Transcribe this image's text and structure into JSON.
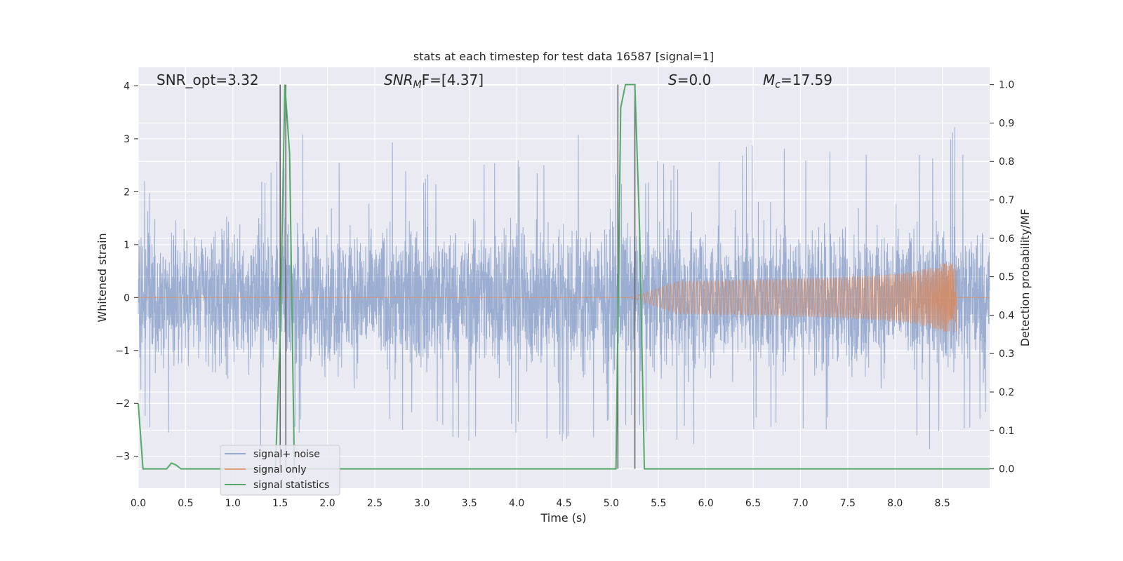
{
  "chart_data": {
    "type": "line",
    "title": "stats at each timestep for test data 16587 [signal=1]",
    "xlabel": "Time (s)",
    "ylabel": "Whitened strain",
    "y2label": "Detection probability/MF",
    "xlim": [
      0.0,
      9.0
    ],
    "ylim": [
      -3.6,
      4.35
    ],
    "y2lim": [
      -0.05,
      1.045
    ],
    "xticks": [
      "0.0",
      "0.5",
      "1.0",
      "1.5",
      "2.0",
      "2.5",
      "3.0",
      "3.5",
      "4.0",
      "4.5",
      "5.0",
      "5.5",
      "6.0",
      "6.5",
      "7.0",
      "7.5",
      "8.0",
      "8.5"
    ],
    "yticks": [
      "−3",
      "−2",
      "−1",
      "0",
      "1",
      "2",
      "3",
      "4"
    ],
    "y2ticks": [
      "0.0",
      "0.1",
      "0.2",
      "0.3",
      "0.4",
      "0.5",
      "0.6",
      "0.7",
      "0.8",
      "0.9",
      "1.0"
    ],
    "grid": true,
    "legend_position": "lower-left",
    "annotations": {
      "snr_opt": "SNR_opt=3.32",
      "snr_mf_base": "SNR",
      "snr_mf_sub": "M",
      "snr_mf_tail": "F=[4.37]",
      "s_var": "S",
      "s_val": "=0.0",
      "mc_var": "M",
      "mc_sub": "c",
      "mc_val": "=17.59"
    },
    "vlines": [
      1.5,
      1.56,
      5.07,
      5.25
    ],
    "series": [
      {
        "name": "signal+ noise",
        "color": "#4c72b0",
        "note": "dense whitened noise, amplitude roughly within -3.2 to 3.4",
        "envelope_peaks": [
          [
            0.05,
            2.3
          ],
          [
            0.2,
            2.0
          ],
          [
            0.3,
            2.4
          ],
          [
            0.4,
            2.5
          ],
          [
            0.55,
            2.2
          ],
          [
            0.7,
            2.5
          ],
          [
            0.8,
            2.8
          ],
          [
            0.85,
            3.0
          ],
          [
            1.0,
            2.3
          ],
          [
            1.2,
            2.5
          ],
          [
            1.4,
            2.4
          ],
          [
            1.7,
            3.3
          ],
          [
            1.9,
            2.3
          ],
          [
            2.1,
            2.9
          ],
          [
            2.2,
            3.0
          ],
          [
            2.4,
            3.3
          ],
          [
            2.5,
            3.2
          ],
          [
            2.7,
            3.1
          ],
          [
            2.9,
            2.5
          ],
          [
            3.1,
            2.3
          ],
          [
            3.3,
            2.9
          ],
          [
            3.5,
            2.7
          ],
          [
            3.7,
            2.9
          ],
          [
            3.9,
            2.7
          ],
          [
            4.1,
            2.8
          ],
          [
            4.3,
            2.5
          ],
          [
            4.5,
            3.2
          ],
          [
            4.7,
            3.1
          ],
          [
            4.9,
            2.8
          ],
          [
            5.1,
            2.4
          ],
          [
            5.5,
            2.6
          ],
          [
            5.8,
            2.6
          ],
          [
            6.1,
            2.9
          ],
          [
            6.3,
            2.8
          ],
          [
            6.6,
            3.0
          ],
          [
            6.8,
            3.1
          ],
          [
            7.0,
            2.9
          ],
          [
            7.2,
            2.7
          ],
          [
            7.5,
            2.9
          ],
          [
            7.7,
            3.1
          ],
          [
            8.0,
            3.0
          ],
          [
            8.2,
            2.8
          ],
          [
            8.4,
            3.0
          ],
          [
            8.6,
            3.3
          ],
          [
            8.8,
            2.9
          ]
        ],
        "envelope_troughs": [
          [
            0.05,
            -2.4
          ],
          [
            0.15,
            -2.6
          ],
          [
            0.25,
            -2.9
          ],
          [
            0.5,
            -2.5
          ],
          [
            0.7,
            -2.6
          ],
          [
            0.9,
            -2.7
          ],
          [
            1.1,
            -2.7
          ],
          [
            1.3,
            -3.0
          ],
          [
            1.6,
            -2.9
          ],
          [
            1.8,
            -2.4
          ],
          [
            2.0,
            -2.8
          ],
          [
            2.2,
            -2.9
          ],
          [
            2.4,
            -3.1
          ],
          [
            2.6,
            -2.5
          ],
          [
            2.8,
            -2.5
          ],
          [
            3.0,
            -2.6
          ],
          [
            3.2,
            -2.5
          ],
          [
            3.4,
            -3.1
          ],
          [
            3.6,
            -2.9
          ],
          [
            3.8,
            -2.5
          ],
          [
            4.0,
            -2.7
          ],
          [
            4.2,
            -2.8
          ],
          [
            4.4,
            -2.7
          ],
          [
            4.6,
            -3.0
          ],
          [
            4.8,
            -2.8
          ],
          [
            5.0,
            -2.6
          ],
          [
            5.4,
            -2.6
          ],
          [
            5.7,
            -2.7
          ],
          [
            5.9,
            -2.9
          ],
          [
            6.1,
            -3.1
          ],
          [
            6.3,
            -2.9
          ],
          [
            6.5,
            -2.5
          ],
          [
            6.8,
            -2.6
          ],
          [
            7.0,
            -2.8
          ],
          [
            7.2,
            -2.6
          ],
          [
            7.5,
            -2.5
          ],
          [
            7.8,
            -2.7
          ],
          [
            8.0,
            -3.0
          ],
          [
            8.3,
            -2.8
          ],
          [
            8.5,
            -3.0
          ],
          [
            8.7,
            -2.7
          ],
          [
            8.9,
            -2.5
          ]
        ]
      },
      {
        "name": "signal only",
        "color": "#dd8452",
        "note": "chirp waveform, near zero until about 5.2 s, amplitude grows to about 0.65 at 8.65 s then ends",
        "chirp_start": 5.2,
        "chirp_end": 8.65,
        "peak_amplitude": 0.65
      },
      {
        "name": "signal statistics",
        "color": "#55a868",
        "axis": "right",
        "x": [
          0.0,
          0.05,
          0.1,
          0.2,
          0.3,
          0.35,
          0.4,
          0.45,
          0.5,
          1.45,
          1.5,
          1.55,
          1.6,
          1.65,
          1.7,
          5.0,
          5.05,
          5.1,
          5.15,
          5.2,
          5.25,
          5.3,
          5.35,
          5.4,
          8.999
        ],
        "y": [
          0.17,
          0.0,
          0.0,
          0.0,
          0.0,
          0.015,
          0.01,
          0.0,
          0.0,
          0.0,
          0.35,
          1.0,
          0.82,
          0.0,
          0.0,
          0.0,
          0.0,
          0.94,
          1.0,
          1.0,
          1.0,
          0.62,
          0.0,
          0.0,
          0.0
        ]
      }
    ]
  }
}
